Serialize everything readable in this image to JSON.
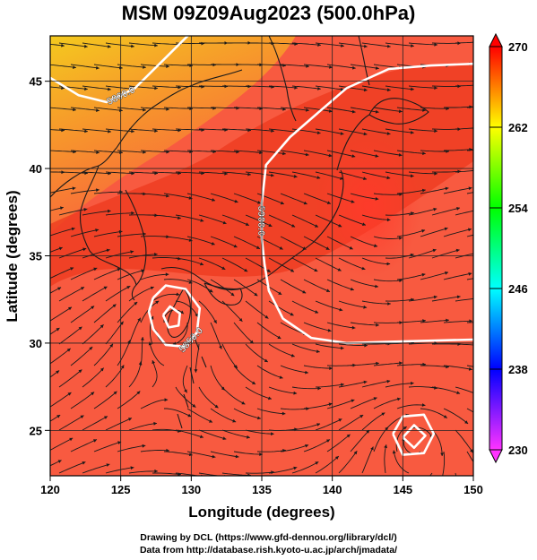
{
  "title": "MSM 09Z09Aug2023 (500.0hPa)",
  "xlabel": "Longitude (degrees)",
  "ylabel": "Latitude  (degrees)",
  "credits": {
    "line1": "Drawing by DCL (https://www.gfd-dennou.org/library/dcl/)",
    "line2": "Data from http://database.rish.kyoto-u.ac.jp/arch/jmadata/"
  },
  "chart_data": {
    "type": "heatmap",
    "variable": "temperature (K) with 500 hPa geopotential height contours and wind streamlines",
    "xlim": [
      120,
      150
    ],
    "ylim": [
      22.4,
      47.6
    ],
    "x_ticks": [
      120,
      125,
      130,
      135,
      140,
      145,
      150
    ],
    "y_ticks": [
      25,
      30,
      35,
      40,
      45
    ],
    "grid": true,
    "colorbar": {
      "min": 230,
      "max": 270,
      "ticks": [
        270,
        262,
        254,
        246,
        238,
        230
      ],
      "colors": [
        "#ff33ff",
        "#0000ff",
        "#00ffff",
        "#00ff00",
        "#ffff00",
        "#ff0000"
      ]
    },
    "contours": [
      {
        "label": "5800.0",
        "points": [
          [
            120,
            45.2
          ],
          [
            122,
            44.2
          ],
          [
            124,
            43.8
          ],
          [
            126,
            44.6
          ],
          [
            128,
            46.2
          ],
          [
            130,
            47.8
          ]
        ]
      },
      {
        "label": "5900.0",
        "points": [
          [
            150,
            46.0
          ],
          [
            147,
            45.9
          ],
          [
            144,
            45.7
          ],
          [
            141,
            44.6
          ],
          [
            139,
            43.2
          ],
          [
            137,
            41.8
          ],
          [
            135.3,
            40.2
          ],
          [
            135,
            38
          ],
          [
            135,
            36
          ],
          [
            135.2,
            34.5
          ],
          [
            135.5,
            33
          ],
          [
            136.5,
            31.4
          ],
          [
            138.5,
            30.3
          ],
          [
            141,
            30
          ],
          [
            145,
            30.1
          ],
          [
            150,
            30.2
          ]
        ]
      },
      {
        "label": "5850.0",
        "points": [
          [
            127.3,
            32.6
          ],
          [
            128.2,
            33.3
          ],
          [
            129.6,
            33.1
          ],
          [
            130.6,
            32
          ],
          [
            130.4,
            30.6
          ],
          [
            129.5,
            29.8
          ],
          [
            128.2,
            29.9
          ],
          [
            127.3,
            30.8
          ],
          [
            127,
            31.8
          ],
          [
            127.3,
            32.6
          ]
        ]
      },
      {
        "label": "",
        "points": [
          [
            128,
            31.6
          ],
          [
            128.5,
            32.1
          ],
          [
            129.2,
            31.7
          ],
          [
            129.1,
            31
          ],
          [
            128.4,
            30.9
          ],
          [
            128,
            31.6
          ]
        ]
      },
      {
        "label": "",
        "points": [
          [
            144.3,
            24.8
          ],
          [
            145,
            25.8
          ],
          [
            146.5,
            25.9
          ],
          [
            147.2,
            24.8
          ],
          [
            146.5,
            23.7
          ],
          [
            145,
            23.6
          ],
          [
            144.3,
            24.8
          ]
        ]
      },
      {
        "label": "",
        "points": [
          [
            145,
            24.6
          ],
          [
            145.8,
            25.3
          ],
          [
            146.6,
            24.7
          ],
          [
            145.8,
            24
          ],
          [
            145,
            24.6
          ]
        ]
      }
    ],
    "vortices": [
      {
        "lon": 128.8,
        "lat": 31.5
      },
      {
        "lon": 145.9,
        "lat": 24.6
      }
    ]
  }
}
